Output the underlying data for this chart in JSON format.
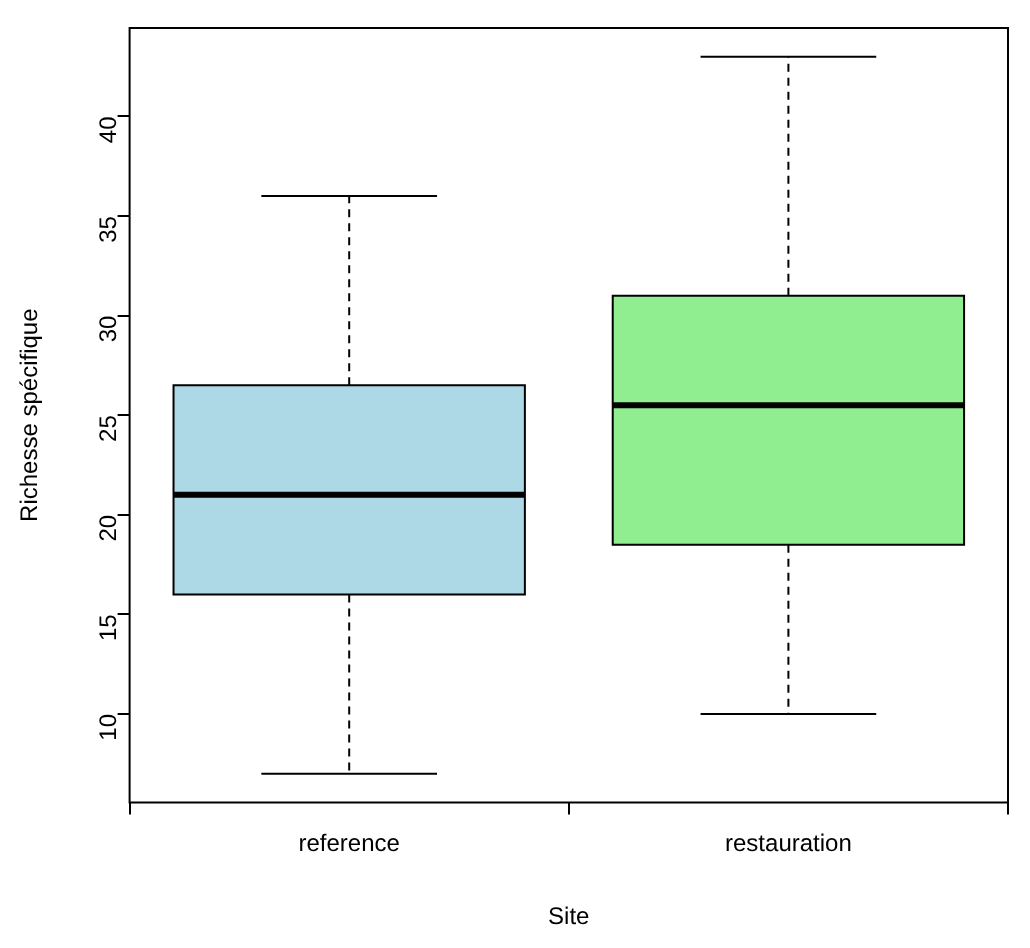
{
  "chart_data": {
    "type": "box",
    "xlabel": "Site",
    "ylabel": "Richesse spécifique",
    "categories": [
      "reference",
      "restauration"
    ],
    "colors": [
      "#add8e6",
      "#90ee90"
    ],
    "boxes": [
      {
        "low": 7,
        "q1": 16,
        "median": 21,
        "q3": 26.5,
        "high": 36
      },
      {
        "low": 10,
        "q1": 18.5,
        "median": 25.5,
        "q3": 31,
        "high": 43
      }
    ],
    "ylim": [
      5.56,
      44.44
    ],
    "yticks": [
      10,
      15,
      20,
      25,
      30,
      35,
      40
    ],
    "grid": false,
    "legend": false
  }
}
